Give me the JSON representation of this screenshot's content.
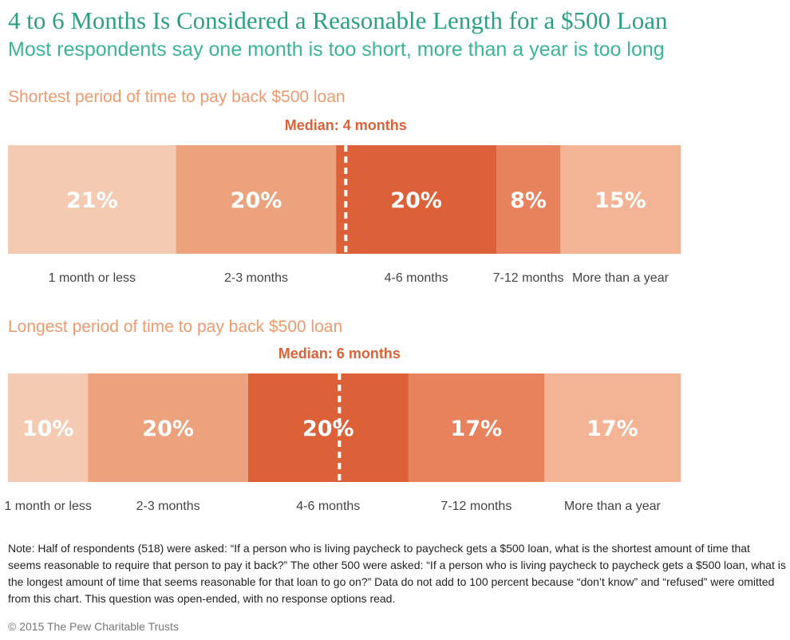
{
  "title": "4 to 6 Months Is Considered a Reasonable Length for a $500 Loan",
  "subtitle": "Most respondents say one month is too short, more than a year is too long",
  "chart_data": [
    {
      "type": "bar",
      "orientation": "stacked-horizontal",
      "title": "Shortest period of time to pay back $500 loan",
      "median_label": "Median: 4 months",
      "categories": [
        "1 month or less",
        "2-3 months",
        "4-6 months",
        "7-12 months",
        "More than a year"
      ],
      "values": [
        21,
        20,
        20,
        8,
        15
      ],
      "value_labels": [
        "21%",
        "20%",
        "20%",
        "8%",
        "15%"
      ],
      "colors": [
        "#f5cab3",
        "#eda27e",
        "#dc6138",
        "#e7825c",
        "#f3b496"
      ],
      "median_category_index": 2
    },
    {
      "type": "bar",
      "orientation": "stacked-horizontal",
      "title": "Longest period of time to pay back $500 loan",
      "median_label": "Median: 6 months",
      "categories": [
        "1 month or less",
        "2-3 months",
        "4-6 months",
        "7-12 months",
        "More than a year"
      ],
      "values": [
        10,
        20,
        20,
        17,
        17
      ],
      "value_labels": [
        "10%",
        "20%",
        "20%",
        "17%",
        "17%"
      ],
      "colors": [
        "#f5cab3",
        "#eda27e",
        "#dc6138",
        "#e7825c",
        "#f3b496"
      ],
      "median_category_index": 2
    }
  ],
  "note": "Note: Half of respondents (518) were asked: “If a person who is living paycheck to paycheck gets a $500 loan, what is the shortest amount of time that seems reasonable to require that person to pay it back?” The other 500 were asked: “If a person who is living paycheck to paycheck gets a $500 loan, what is the longest amount of time that seems reasonable for that loan to go on?” Data do not add to 100 percent because “don’t know” and “refused” were omitted from this chart. This question was open-ended, with no response options read.",
  "copyright": "© 2015 The Pew Charitable Trusts"
}
